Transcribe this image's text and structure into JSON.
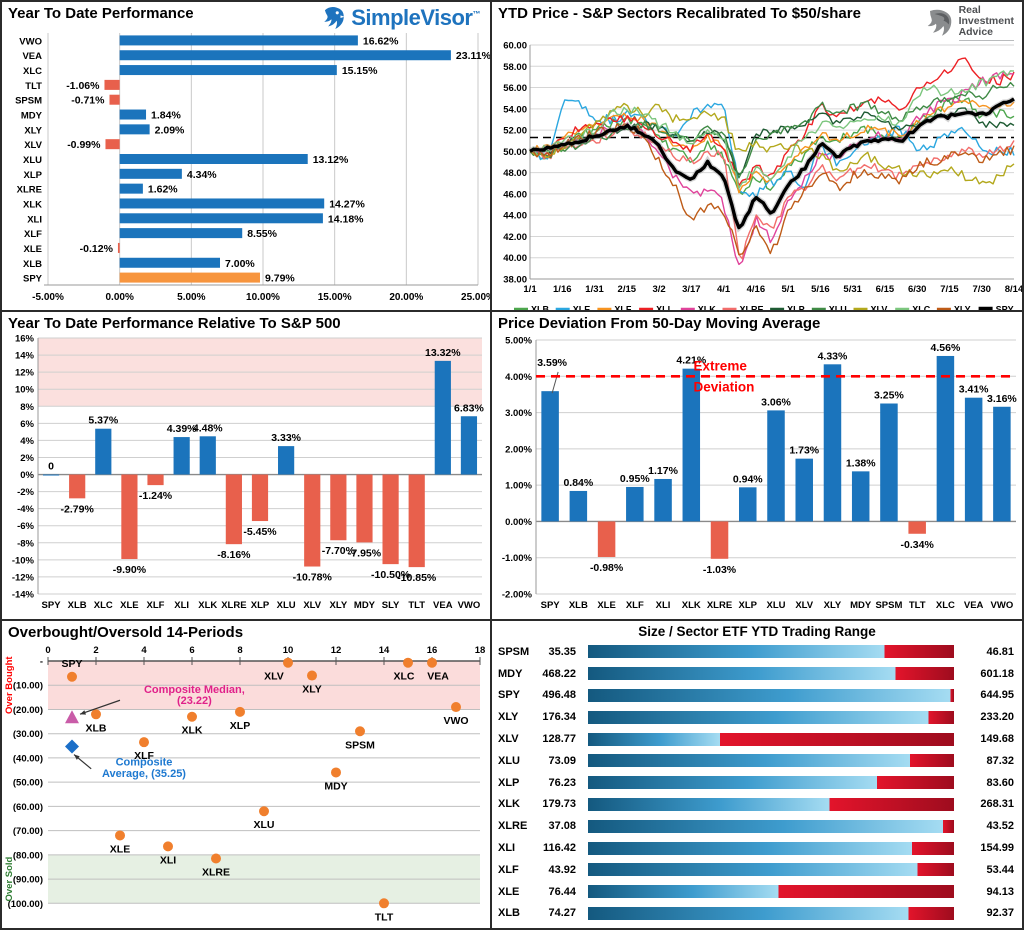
{
  "brand": {
    "simplevisor": "SimpleVisor",
    "tm": "™",
    "ria_lines": [
      "Real",
      "Investment",
      "Advice"
    ]
  },
  "chart_data": [
    {
      "id": "ytd-performance",
      "type": "bar",
      "orientation": "horizontal",
      "title": "Year To Date Performance",
      "categories": [
        "VWO",
        "VEA",
        "XLC",
        "TLT",
        "SPSM",
        "MDY",
        "XLY",
        "XLV",
        "XLU",
        "XLP",
        "XLRE",
        "XLK",
        "XLI",
        "XLF",
        "XLE",
        "XLB",
        "SPY"
      ],
      "values": [
        16.62,
        23.11,
        15.15,
        -1.06,
        -0.71,
        1.84,
        2.09,
        -0.99,
        13.12,
        4.34,
        1.62,
        14.27,
        14.18,
        8.55,
        -0.12,
        7.0,
        9.79
      ],
      "labels": [
        "16.62%",
        "23.11%",
        "15.15%",
        "-1.06%",
        "-0.71%",
        "1.84%",
        "2.09%",
        "-0.99%",
        "13.12%",
        "4.34%",
        "1.62%",
        "14.27%",
        "14.18%",
        "8.55%",
        "-0.12%",
        "7.00%",
        "9.79%"
      ],
      "xticks": [
        "-5.00%",
        "0.00%",
        "5.00%",
        "10.00%",
        "15.00%",
        "20.00%",
        "25.00%"
      ],
      "xtick_vals": [
        -5,
        0,
        5,
        10,
        15,
        20,
        25
      ],
      "xlim": [
        -5,
        25
      ],
      "colors": {
        "positive": "#1B74BC",
        "negative": "#E8604C",
        "highlight": "#F7953E"
      },
      "highlight_category": "SPY"
    },
    {
      "id": "ytd-price",
      "type": "line",
      "title": "YTD Price - S&P Sectors Recalibrated To $50/share",
      "ylim": [
        38,
        60
      ],
      "yticks": [
        "60.00",
        "58.00",
        "56.00",
        "54.00",
        "52.00",
        "50.00",
        "48.00",
        "46.00",
        "44.00",
        "42.00",
        "40.00",
        "38.00"
      ],
      "xticks": [
        "1/1",
        "1/16",
        "1/31",
        "2/15",
        "3/2",
        "3/17",
        "4/1",
        "4/16",
        "5/1",
        "5/16",
        "5/31",
        "6/15",
        "6/30",
        "7/15",
        "7/30",
        "8/14"
      ],
      "dashed_line": 51.3,
      "series": [
        {
          "name": "XLB",
          "color": "#4DA64D",
          "w": 1.4,
          "j": 0.45,
          "values": [
            50,
            49.6,
            50.3,
            51.4,
            52,
            52.6,
            53.1,
            52.6,
            51.2,
            50,
            49.2,
            50.6,
            49.6,
            45.6,
            47.6,
            46.6,
            48.6,
            49.6,
            51.6,
            51,
            51.6,
            52.1,
            51.6,
            51.1,
            52.6,
            53.6,
            54.6,
            55.1,
            53.1,
            53.6,
            53.4
          ]
        },
        {
          "name": "XLE",
          "color": "#2BA7E0",
          "w": 1.4,
          "j": 0.5,
          "values": [
            50,
            49.2,
            54.4,
            54.9,
            52.6,
            53.1,
            53.4,
            53,
            52.1,
            51.1,
            53.4,
            54.4,
            54.9,
            46.1,
            45.9,
            47.1,
            48.1,
            46.6,
            50.6,
            49.1,
            50.1,
            51.1,
            51.6,
            52.1,
            50.1,
            50.6,
            51.6,
            52.1,
            50.6,
            49.9,
            50
          ]
        },
        {
          "name": "XLF",
          "color": "#F79420",
          "w": 1.4,
          "j": 0.4,
          "values": [
            50,
            50.4,
            51.4,
            52,
            52.5,
            53,
            53.4,
            53,
            52.1,
            50.6,
            50.1,
            51.4,
            50.5,
            46.1,
            48.1,
            47.1,
            49.1,
            50.1,
            51.6,
            51.1,
            51.6,
            52.1,
            51.9,
            51.6,
            52.6,
            53.6,
            54.1,
            54.6,
            54.1,
            54.4,
            54.7
          ]
        },
        {
          "name": "XLI",
          "color": "#ED2024",
          "w": 1.4,
          "j": 0.45,
          "values": [
            50,
            49.6,
            51.4,
            52,
            52.6,
            52.9,
            53.1,
            52.6,
            51.6,
            50.6,
            50.1,
            51.6,
            50.6,
            46.6,
            48.6,
            47.6,
            50.1,
            51.6,
            54.4,
            53.4,
            54.1,
            55.1,
            54.6,
            54.1,
            55.6,
            56.6,
            57.6,
            58.7,
            57.1,
            56.6,
            57.2
          ]
        },
        {
          "name": "XLK",
          "color": "#E0439B",
          "w": 1.4,
          "j": 0.5,
          "values": [
            50,
            50,
            50.6,
            51.1,
            51.6,
            52.1,
            52.6,
            51.6,
            49.6,
            47.6,
            45.8,
            46.6,
            45.1,
            38.9,
            43.6,
            41.6,
            45.1,
            47.1,
            50.1,
            49.1,
            50.6,
            51.6,
            51.6,
            51.1,
            53.1,
            54.1,
            54.6,
            55.6,
            56.6,
            57,
            57.3
          ]
        },
        {
          "name": "XLRE",
          "color": "#F26D6B",
          "w": 1.4,
          "j": 0.45,
          "values": [
            50,
            49.6,
            50.1,
            50.6,
            51.1,
            51.6,
            52.1,
            51.6,
            50.6,
            49.6,
            49.1,
            50.1,
            49.6,
            39.6,
            44.1,
            42.6,
            45.6,
            46.6,
            48.6,
            47.6,
            48.1,
            48.6,
            48.1,
            47.6,
            48.6,
            49.1,
            49.6,
            50.1,
            49.6,
            50.1,
            50.8
          ]
        },
        {
          "name": "XLP",
          "color": "#1E5B33",
          "w": 1.4,
          "j": 0.35,
          "values": [
            50,
            49.9,
            50.6,
            51.1,
            51.6,
            51.9,
            52.1,
            52.6,
            52.1,
            51.6,
            51.1,
            51.9,
            51.4,
            47.6,
            51.6,
            51.9,
            52.1,
            52.6,
            53.6,
            52.6,
            53.1,
            53.6,
            52.6,
            52.1,
            52.6,
            53.1,
            53.6,
            54.1,
            52.6,
            52.4,
            52.3
          ]
        },
        {
          "name": "XLU",
          "color": "#3F8A45",
          "w": 1.4,
          "j": 0.4,
          "values": [
            50,
            49.6,
            50.1,
            50.6,
            51.1,
            51.6,
            52.1,
            52.6,
            52.1,
            51.6,
            51.1,
            52.1,
            51.6,
            47.6,
            51.1,
            51.6,
            52.1,
            52.6,
            54.4,
            53.4,
            54.1,
            54.4,
            53.6,
            53.1,
            54.1,
            54.6,
            55.1,
            55.6,
            55.1,
            56.1,
            56.5
          ]
        },
        {
          "name": "XLV",
          "color": "#B3A81C",
          "w": 1.4,
          "j": 0.5,
          "values": [
            50,
            49.6,
            50.6,
            51.6,
            52.6,
            53.6,
            54.1,
            53.6,
            54.1,
            53.1,
            52.6,
            53.6,
            53.1,
            49.6,
            51.1,
            50.1,
            50.6,
            50.1,
            49.6,
            48.1,
            48.6,
            49.6,
            48.6,
            48.1,
            47.6,
            48.1,
            48.6,
            47.6,
            46.9,
            47.6,
            49.3
          ]
        },
        {
          "name": "XLC",
          "color": "#7CC67E",
          "w": 1.4,
          "j": 0.45,
          "values": [
            50,
            50.2,
            51.1,
            51.6,
            52.1,
            53.4,
            54.2,
            53.4,
            52.6,
            51.6,
            50.6,
            52.1,
            51.1,
            46.6,
            48.6,
            47.1,
            49.6,
            51.1,
            52.6,
            52.1,
            52.6,
            53.1,
            53.1,
            52.6,
            55.4,
            55.9,
            55.4,
            55.9,
            56.4,
            57,
            57.5
          ]
        },
        {
          "name": "XLY",
          "color": "#BE5B17",
          "w": 1.4,
          "j": 0.5,
          "values": [
            50,
            49.6,
            50.6,
            51.1,
            51.6,
            52.1,
            52.6,
            51.6,
            49.1,
            46.6,
            43.4,
            45.1,
            44.6,
            40.3,
            43.1,
            40.3,
            44.6,
            46.1,
            48.1,
            46.6,
            47.6,
            48.1,
            47.6,
            47.1,
            48.6,
            49.1,
            49.6,
            49.9,
            49.1,
            49.6,
            50.2
          ]
        },
        {
          "name": "SPY",
          "color": "#000000",
          "w": 3.4,
          "j": 0.2,
          "values": [
            50,
            50.2,
            50.6,
            51,
            51.4,
            51.9,
            52.3,
            51.8,
            50.4,
            48.2,
            47.3,
            48.9,
            47.7,
            42.4,
            45.9,
            44,
            46.9,
            48.4,
            50.7,
            49.5,
            50.4,
            51,
            51.2,
            50.9,
            52.3,
            53.1,
            53.3,
            53.7,
            53.4,
            54.2,
            54.9
          ]
        }
      ]
    },
    {
      "id": "relative-performance",
      "type": "bar",
      "orientation": "vertical",
      "title": "Year To Date Performance Relative To S&P 500",
      "categories": [
        "SPY",
        "XLB",
        "XLC",
        "XLE",
        "XLF",
        "XLI",
        "XLK",
        "XLRE",
        "XLP",
        "XLU",
        "XLV",
        "XLY",
        "MDY",
        "SLY",
        "TLT",
        "VEA",
        "VWO"
      ],
      "values": [
        0,
        -2.79,
        5.37,
        -9.9,
        -1.24,
        4.39,
        4.48,
        -8.16,
        -5.45,
        3.33,
        -10.78,
        -7.7,
        -7.95,
        -10.5,
        -10.85,
        13.32,
        6.83
      ],
      "labels": [
        "0",
        "-2.79%",
        "5.37%",
        "-9.90%",
        "-1.24%",
        "4.39%",
        "4.48%",
        "-8.16%",
        "-5.45%",
        "3.33%",
        "-10.78%",
        "-7.70%",
        "-7.95%",
        "-10.50%",
        "-10.85%",
        "13.32%",
        "6.83%"
      ],
      "ylim": [
        -14,
        16
      ],
      "yticks": [
        "16%",
        "14%",
        "12%",
        "10%",
        "8%",
        "6%",
        "4%",
        "2%",
        "0%",
        "-2%",
        "-4%",
        "-6%",
        "-8%",
        "-10%",
        "-12%",
        "-14%"
      ],
      "ytick_vals": [
        16,
        14,
        12,
        10,
        8,
        6,
        4,
        2,
        0,
        -2,
        -4,
        -6,
        -8,
        -10,
        -12,
        -14
      ],
      "band": {
        "from": 8,
        "to": 16,
        "color": "#FBE0DE"
      },
      "colors": {
        "positive": "#1B74BC",
        "negative": "#E8604C"
      }
    },
    {
      "id": "price-deviation",
      "type": "bar",
      "orientation": "vertical",
      "title": "Price Deviation From 50-Day Moving Average",
      "categories": [
        "SPY",
        "XLB",
        "XLE",
        "XLF",
        "XLI",
        "XLK",
        "XLRE",
        "XLP",
        "XLU",
        "XLV",
        "XLY",
        "MDY",
        "SPSM",
        "TLT",
        "XLC",
        "VEA",
        "VWO"
      ],
      "values": [
        3.59,
        0.84,
        -0.98,
        0.95,
        1.17,
        4.21,
        -1.03,
        0.94,
        3.06,
        1.73,
        4.33,
        1.38,
        3.25,
        -0.34,
        4.56,
        3.41,
        3.16
      ],
      "labels": [
        "3.59%",
        "0.84%",
        "-0.98%",
        "0.95%",
        "1.17%",
        "4.21%",
        "-1.03%",
        "0.94%",
        "3.06%",
        "1.73%",
        "4.33%",
        "1.38%",
        "3.25%",
        "-0.34%",
        "4.56%",
        "3.41%",
        "3.16%"
      ],
      "ylim": [
        -2,
        5
      ],
      "yticks": [
        "5.00%",
        "4.00%",
        "3.00%",
        "2.00%",
        "1.00%",
        "0.00%",
        "-1.00%",
        "-2.00%"
      ],
      "ytick_vals": [
        5,
        4,
        3,
        2,
        1,
        0,
        -1,
        -2
      ],
      "threshold": {
        "value": 4.0,
        "color": "#FF0000",
        "label_line1": "Extreme",
        "label_line2": "Deviation"
      },
      "leader_first_label": true,
      "colors": {
        "positive": "#1B74BC",
        "negative": "#E8604C"
      }
    },
    {
      "id": "overbought-oversold",
      "type": "scatter",
      "title": "Overbought/Oversold 14-Periods",
      "xlim": [
        0,
        18
      ],
      "xticks": [
        "0",
        "2",
        "4",
        "6",
        "8",
        "10",
        "12",
        "14",
        "16",
        "18"
      ],
      "xtick_vals": [
        0,
        2,
        4,
        6,
        8,
        10,
        12,
        14,
        16,
        18
      ],
      "yticks": [
        "-",
        "(10.00)",
        "(20.00)",
        "(30.00)",
        "(40.00)",
        "(50.00)",
        "(60.00)",
        "(70.00)",
        "(80.00)",
        "(90.00)",
        "(100.00)"
      ],
      "ytick_vals": [
        0,
        -10,
        -20,
        -30,
        -40,
        -50,
        -60,
        -70,
        -80,
        -90,
        -100
      ],
      "bands": {
        "overbought": {
          "from": 0,
          "to": -20,
          "color": "#FBDCDB",
          "label": "Over Bought",
          "label_color": "#FF0000"
        },
        "oversold": {
          "from": -80,
          "to": -100,
          "color": "#E6F0E3",
          "label": "Over Sold",
          "label_color": "#2E7D32"
        }
      },
      "point_color": "#F07F2D",
      "points": [
        {
          "t": "SPY",
          "x": 1,
          "y": -6.5,
          "la": "above"
        },
        {
          "t": "XLB",
          "x": 2,
          "y": -22
        },
        {
          "t": "XLE",
          "x": 3,
          "y": -72
        },
        {
          "t": "XLF",
          "x": 4,
          "y": -33.5
        },
        {
          "t": "XLI",
          "x": 5,
          "y": -76.5
        },
        {
          "t": "XLK",
          "x": 6,
          "y": -23
        },
        {
          "t": "XLRE",
          "x": 7,
          "y": -81.5
        },
        {
          "t": "XLP",
          "x": 8,
          "y": -21
        },
        {
          "t": "XLU",
          "x": 9,
          "y": -62
        },
        {
          "t": "XLV",
          "x": 10,
          "y": -0.7,
          "dx": -14
        },
        {
          "t": "XLY",
          "x": 11,
          "y": -6
        },
        {
          "t": "MDY",
          "x": 12,
          "y": -46
        },
        {
          "t": "SPSM",
          "x": 13,
          "y": -29
        },
        {
          "t": "TLT",
          "x": 14,
          "y": -100
        },
        {
          "t": "XLC",
          "x": 15,
          "y": -0.7,
          "dx": -4
        },
        {
          "t": "VEA",
          "x": 16,
          "y": -0.7,
          "dx": 6
        },
        {
          "t": "VWO",
          "x": 17,
          "y": -19
        }
      ],
      "median": {
        "x": 1,
        "y": -23.2,
        "color": "#C95CA8",
        "text_color": "#E0218A",
        "line1": "Composite Median,",
        "line2": "(23.22)"
      },
      "average": {
        "x": 1,
        "y": -35.3,
        "color": "#1B6FC8",
        "text_color": "#1E79D0",
        "line1": "Composite",
        "line2": "Average,  (35.25)"
      }
    },
    {
      "id": "trading-range",
      "type": "range-bar",
      "title": "Size / Sector ETF YTD Trading Range",
      "colors": {
        "blue_dark": "#14597F",
        "blue_mid": "#3E9CCE",
        "blue_light": "#A5DCF2",
        "red_bright": "#E3142B",
        "red_dark": "#9E0C1E"
      },
      "rows": [
        {
          "label": "SPSM",
          "low": "35.35",
          "high": "46.81",
          "pos": 0.81
        },
        {
          "label": "MDY",
          "low": "468.22",
          "high": "601.18",
          "pos": 0.84
        },
        {
          "label": "SPY",
          "low": "496.48",
          "high": "644.95",
          "pos": 0.99
        },
        {
          "label": "XLY",
          "low": "176.34",
          "high": "233.20",
          "pos": 0.93
        },
        {
          "label": "XLV",
          "low": "128.77",
          "high": "149.68",
          "pos": 0.36
        },
        {
          "label": "XLU",
          "low": "73.09",
          "high": "87.32",
          "pos": 0.88
        },
        {
          "label": "XLP",
          "low": "76.23",
          "high": "83.60",
          "pos": 0.79
        },
        {
          "label": "XLK",
          "low": "179.73",
          "high": "268.31",
          "pos": 0.66
        },
        {
          "label": "XLRE",
          "low": "37.08",
          "high": "43.52",
          "pos": 0.97
        },
        {
          "label": "XLI",
          "low": "116.42",
          "high": "154.99",
          "pos": 0.885
        },
        {
          "label": "XLF",
          "low": "43.92",
          "high": "53.44",
          "pos": 0.9
        },
        {
          "label": "XLE",
          "low": "76.44",
          "high": "94.13",
          "pos": 0.52
        },
        {
          "label": "XLB",
          "low": "74.27",
          "high": "92.37",
          "pos": 0.875
        }
      ]
    }
  ]
}
